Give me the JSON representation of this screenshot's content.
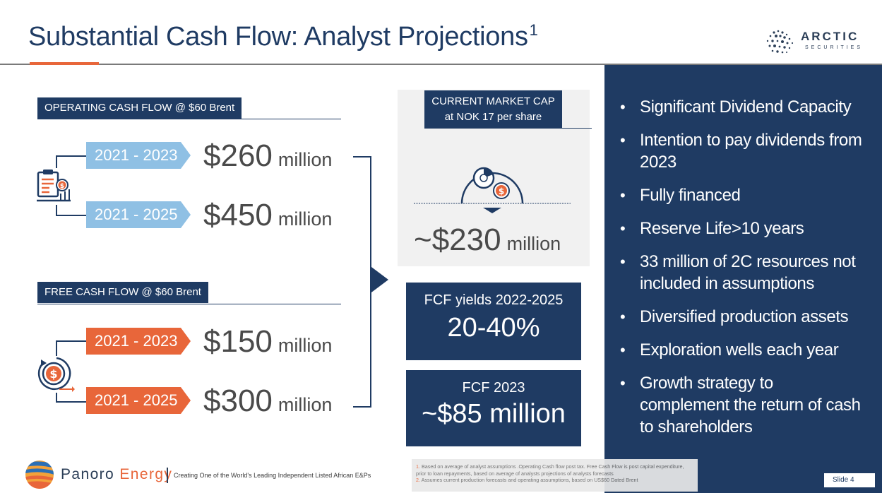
{
  "title": {
    "text": "Substantial Cash Flow: Analyst Projections",
    "superscript": "1"
  },
  "arctic_logo": {
    "name": "ARCTIC",
    "sub": "SECURITIES"
  },
  "operating": {
    "label": "OPERATING CASH FLOW @ $60 Brent",
    "icon": "clipboard-dollar-icon",
    "rows": [
      {
        "period": "2021 - 2023",
        "value": "$260",
        "unit": "million"
      },
      {
        "period": "2021 - 2025",
        "value": "$450",
        "unit": "million"
      }
    ]
  },
  "free": {
    "label": "FREE CASH FLOW @ $60 Brent",
    "icon": "dollar-cycle-icon",
    "rows": [
      {
        "period": "2021 - 2023",
        "value": "$150",
        "unit": "million"
      },
      {
        "period": "2021 - 2025",
        "value": "$300",
        "unit": "million"
      }
    ]
  },
  "market_cap": {
    "label_line1": "CURRENT MARKET CAP",
    "label_line2": "at NOK 17 per share",
    "icon": "pie-dollar-icon",
    "value": "~$230",
    "unit": "million"
  },
  "fcf_yields": {
    "label": "FCF yields 2022-2025",
    "value": "20-40%"
  },
  "fcf_2023": {
    "label": "FCF 2023",
    "value": "~$85 million"
  },
  "bullets": [
    "Significant Dividend Capacity",
    "Intention to pay dividends from 2023",
    "Fully financed",
    "Reserve Life>10 years",
    "33 million of 2C resources not included in assumptions",
    "Diversified production assets",
    "Exploration wells each year",
    "Growth strategy to complement the return of cash to shareholders"
  ],
  "footnotes": {
    "n1": "1.",
    "t1": "Based on average of analyst assumptions .Operating Cash flow post tax. Free Cash Flow is post capital expenditure, prior to loan repayments, based on average of analysts projections of analysts forecasts",
    "n2": "2.",
    "t2": "Assumes current production forecasts and operating assumptions, based on US$60 Dated Brent"
  },
  "slide_number": "Slide 4",
  "panoro": {
    "name_part1": "Panoro",
    "name_part2": "Energy",
    "tagline": "Creating One of the World's Leading Independent Listed African E&Ps"
  },
  "colors": {
    "navy": "#1f3b63",
    "orange": "#e8663a",
    "light_blue": "#8fc0e4"
  }
}
